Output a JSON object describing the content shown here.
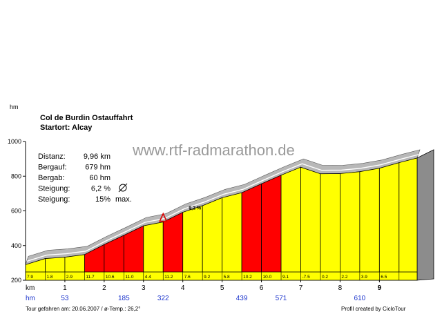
{
  "chart_data": {
    "type": "area",
    "unit_label": "hm",
    "title": "Col de Burdin  Ostauffahrt",
    "subtitle": "Startort: Alcay",
    "watermark": "www.rtf-radmarathon.de",
    "stats": [
      {
        "label": "Distanz:",
        "value": "9,96 km",
        "extra": ""
      },
      {
        "label": "Bergauf:",
        "value": "679 hm",
        "extra": ""
      },
      {
        "label": "Bergab:",
        "value": "60 hm",
        "extra": ""
      },
      {
        "label": "Steigung:",
        "value": "6,2 %",
        "extra": ""
      },
      {
        "label": "Steigung:",
        "value": "15%",
        "extra": "max."
      }
    ],
    "ylim": [
      200,
      1000
    ],
    "yticks": [
      "200",
      "400",
      "600",
      "800",
      "1000"
    ],
    "xlim": [
      0,
      9.96
    ],
    "km_row_label": "km",
    "km_ticks": [
      "1",
      "2",
      "3",
      "4",
      "5",
      "6",
      "7",
      "8",
      "9"
    ],
    "hm_row_label": "hm",
    "hm_marks": [
      {
        "km": 1,
        "text": "53"
      },
      {
        "km": 2.5,
        "text": "185"
      },
      {
        "km": 3.5,
        "text": "322"
      },
      {
        "km": 5.5,
        "text": "439"
      },
      {
        "km": 6.5,
        "text": "571"
      },
      {
        "km": 8.5,
        "text": "610"
      }
    ],
    "segments": [
      {
        "start": 0.0,
        "end": 0.5,
        "grade": "7.9",
        "alt_start": 290,
        "alt_end": 325
      },
      {
        "start": 0.5,
        "end": 1.0,
        "grade": "1.8",
        "alt_start": 325,
        "alt_end": 333
      },
      {
        "start": 1.0,
        "end": 1.5,
        "grade": "2.9",
        "alt_start": 333,
        "alt_end": 348
      },
      {
        "start": 1.5,
        "end": 2.0,
        "grade": "11.7",
        "alt_start": 348,
        "alt_end": 406
      },
      {
        "start": 2.0,
        "end": 2.5,
        "grade": "10.6",
        "alt_start": 406,
        "alt_end": 459
      },
      {
        "start": 2.5,
        "end": 3.0,
        "grade": "11.0",
        "alt_start": 459,
        "alt_end": 514
      },
      {
        "start": 3.0,
        "end": 3.5,
        "grade": "4.4",
        "alt_start": 514,
        "alt_end": 536
      },
      {
        "start": 3.5,
        "end": 4.0,
        "grade": "11.2",
        "alt_start": 536,
        "alt_end": 592
      },
      {
        "start": 4.0,
        "end": 4.5,
        "grade": "7.6",
        "alt_start": 592,
        "alt_end": 630
      },
      {
        "start": 4.5,
        "end": 5.0,
        "grade": "9.2",
        "alt_start": 630,
        "alt_end": 676
      },
      {
        "start": 5.0,
        "end": 5.5,
        "grade": "5.8",
        "alt_start": 676,
        "alt_end": 705
      },
      {
        "start": 5.5,
        "end": 6.0,
        "grade": "10.2",
        "alt_start": 705,
        "alt_end": 756
      },
      {
        "start": 6.0,
        "end": 6.5,
        "grade": "10.0",
        "alt_start": 756,
        "alt_end": 806
      },
      {
        "start": 6.5,
        "end": 7.0,
        "grade": "9.1",
        "alt_start": 806,
        "alt_end": 852
      },
      {
        "start": 7.0,
        "end": 7.5,
        "grade": "-7.5",
        "alt_start": 852,
        "alt_end": 814
      },
      {
        "start": 7.5,
        "end": 8.0,
        "grade": "0.2",
        "alt_start": 814,
        "alt_end": 815
      },
      {
        "start": 8.0,
        "end": 8.5,
        "grade": "2.2",
        "alt_start": 815,
        "alt_end": 826
      },
      {
        "start": 8.5,
        "end": 9.0,
        "grade": "3.9",
        "alt_start": 826,
        "alt_end": 846
      },
      {
        "start": 9.0,
        "end": 9.5,
        "grade": "6.5",
        "alt_start": 846,
        "alt_end": 878
      },
      {
        "start": 9.5,
        "end": 9.96,
        "grade": "",
        "alt_start": 878,
        "alt_end": 905
      }
    ],
    "max_grade_marker": {
      "km": 3.5,
      "text": "9,2 %"
    },
    "colors": {
      "steep": "#ff0000",
      "moderate": "#ffff00",
      "outline": "#000000",
      "side": "#8c8c8c"
    },
    "footer_left": "Tour gefahren am: 20.06.2007  /  ø-Temp.: 26,2°",
    "footer_right": "Profil created by CicloTour"
  }
}
